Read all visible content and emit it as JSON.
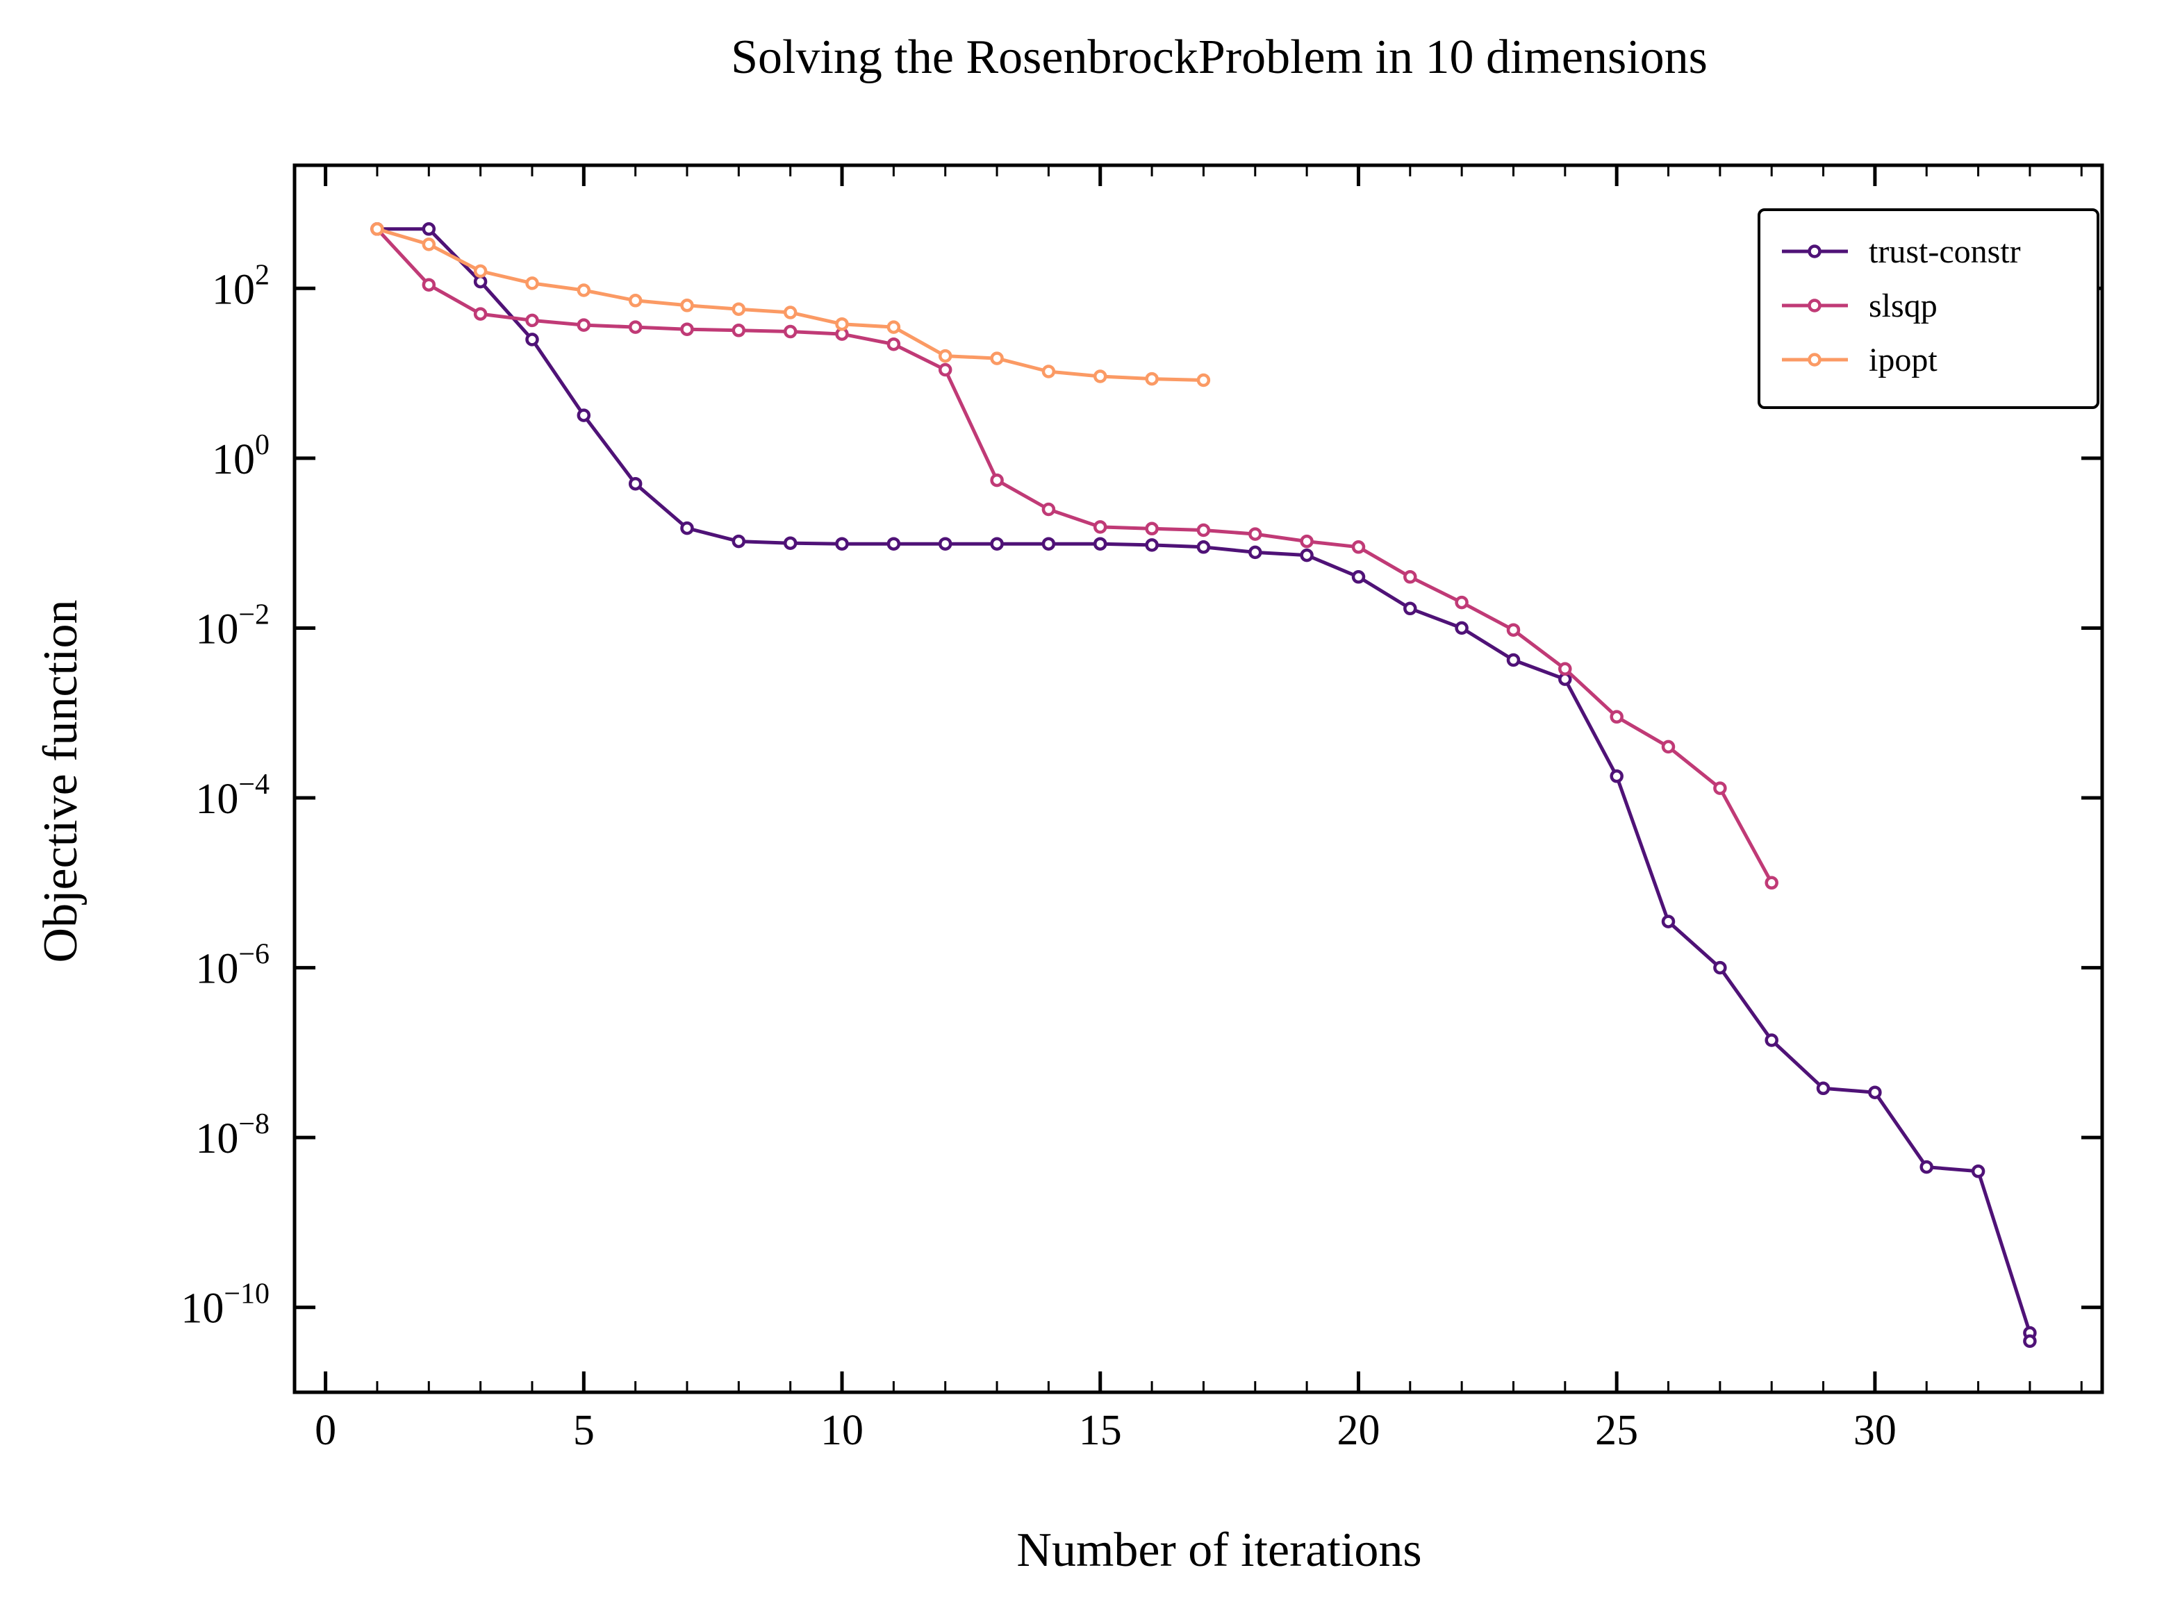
{
  "chart_data": {
    "type": "line",
    "title": "Solving the RosenbrockProblem in 10 dimensions",
    "xlabel": "Number of iterations",
    "ylabel": "Objective function",
    "xlim": [
      -0.6,
      34.4
    ],
    "ylim": [
      -11.0,
      3.45
    ],
    "yscale": "log",
    "x_ticks": [
      0,
      5,
      10,
      15,
      20,
      25,
      30
    ],
    "y_ticks": [
      {
        "exp": 2,
        "label_base": "10",
        "label_exp": "2"
      },
      {
        "exp": 0,
        "label_base": "10",
        "label_exp": "0"
      },
      {
        "exp": -2,
        "label_base": "10",
        "label_exp": "−2"
      },
      {
        "exp": -4,
        "label_base": "10",
        "label_exp": "−4"
      },
      {
        "exp": -6,
        "label_base": "10",
        "label_exp": "−6"
      },
      {
        "exp": -8,
        "label_base": "10",
        "label_exp": "−8"
      },
      {
        "exp": -10,
        "label_base": "10",
        "label_exp": "−10"
      }
    ],
    "legend_position": "top-right",
    "grid": false,
    "series": [
      {
        "name": "trust-constr",
        "color": "#4f1277",
        "x": [
          1,
          2,
          3,
          4,
          5,
          6,
          7,
          8,
          9,
          10,
          11,
          12,
          13,
          14,
          15,
          16,
          17,
          18,
          19,
          20,
          21,
          22,
          23,
          24,
          25,
          26,
          27,
          28,
          29,
          30,
          31,
          32,
          33,
          33
        ],
        "y": [
          500,
          500,
          120,
          25,
          3.2,
          0.5,
          0.15,
          0.105,
          0.1,
          0.098,
          0.098,
          0.098,
          0.098,
          0.098,
          0.098,
          0.095,
          0.09,
          0.078,
          0.072,
          0.04,
          0.017,
          0.01,
          0.0042,
          0.0025,
          0.00018,
          3.5e-06,
          1e-06,
          1.4e-07,
          3.8e-08,
          3.4e-08,
          4.5e-09,
          4e-09,
          5e-11,
          4e-11
        ]
      },
      {
        "name": "slsqp",
        "color": "#c03a76",
        "x": [
          1,
          2,
          3,
          4,
          5,
          6,
          7,
          8,
          9,
          10,
          11,
          12,
          13,
          14,
          15,
          16,
          17,
          18,
          19,
          20,
          21,
          22,
          23,
          24,
          25,
          26,
          27,
          28
        ],
        "y": [
          500,
          110,
          50,
          42,
          37,
          35,
          33,
          32,
          31,
          29,
          22,
          11,
          0.55,
          0.25,
          0.155,
          0.148,
          0.142,
          0.128,
          0.105,
          0.09,
          0.04,
          0.02,
          0.0095,
          0.0033,
          0.0009,
          0.0004,
          0.00013,
          1e-05
        ]
      },
      {
        "name": "ipopt",
        "color": "#fb9a64",
        "x": [
          1,
          2,
          3,
          4,
          5,
          6,
          7,
          8,
          9,
          10,
          11,
          12,
          13,
          14,
          15,
          16,
          17
        ],
        "y": [
          500,
          330,
          160,
          115,
          95,
          72,
          63,
          57,
          52,
          38,
          35,
          16,
          15,
          10.5,
          9.2,
          8.6,
          8.3
        ]
      }
    ]
  }
}
